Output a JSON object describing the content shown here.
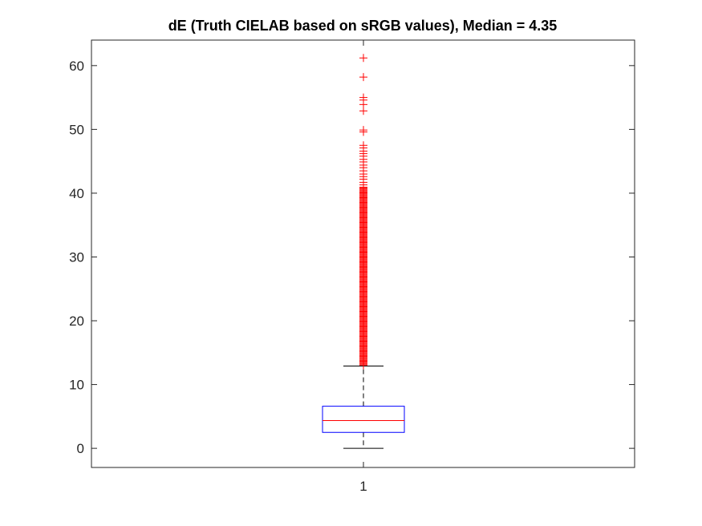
{
  "chart_data": {
    "type": "boxplot",
    "title": "dE (Truth CIELAB based on sRGB values), Median = 4.35",
    "xlabel": "",
    "ylabel": "",
    "categories": [
      "1"
    ],
    "ylim": [
      -3,
      64
    ],
    "yticks": [
      0,
      10,
      20,
      30,
      40,
      50,
      60
    ],
    "grid": false,
    "box": {
      "whisker_low": 0,
      "q1": 2.5,
      "median": 4.35,
      "q3": 6.6,
      "whisker_high": 12.9
    },
    "outliers_dense_range": [
      12.9,
      41
    ],
    "outliers": [
      41.3,
      41.7,
      42.2,
      42.6,
      43.0,
      43.5,
      44.0,
      44.4,
      44.9,
      45.3,
      45.8,
      46.2,
      46.6,
      47.1,
      47.5,
      49.6,
      49.9,
      52.9,
      53.9,
      54.6,
      55.0,
      58.2,
      61.2
    ],
    "colors": {
      "box": "#0000ff",
      "median": "#ff0000",
      "whisker": "#000000",
      "outlier": "#ff0000",
      "axis": "#262626"
    }
  }
}
